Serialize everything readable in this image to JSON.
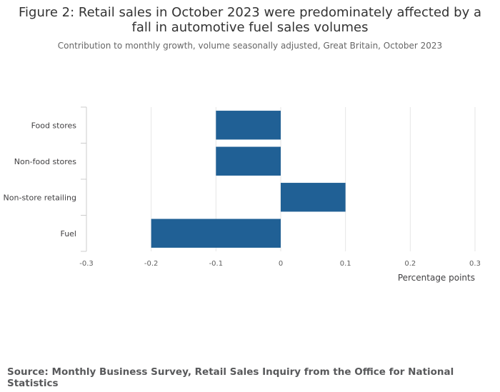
{
  "title": "Figure 2: Retail sales in October 2023 were predominately affected by a fall in automotive fuel sales volumes",
  "subtitle": "Contribution to monthly growth, volume seasonally adjusted, Great Britain, October 2023",
  "source": "Source: Monthly Business Survey, Retail Sales Inquiry from the Office for National Statistics",
  "chart_data": {
    "type": "bar",
    "orientation": "horizontal",
    "categories": [
      "Food stores",
      "Non-food stores",
      "Non-store retailing",
      "Fuel"
    ],
    "values": [
      -0.1,
      -0.1,
      0.1,
      -0.2
    ],
    "xlabel": "Percentage points",
    "ylabel": "",
    "xlim": [
      -0.3,
      0.3
    ],
    "xticks": [
      -0.3,
      -0.2,
      -0.1,
      0,
      0.1,
      0.2,
      0.3
    ],
    "xtick_labels": [
      "-0.3",
      "-0.2",
      "-0.1",
      "0",
      "0.1",
      "0.2",
      "0.3"
    ],
    "grid": true,
    "bar_color": "#206095"
  }
}
